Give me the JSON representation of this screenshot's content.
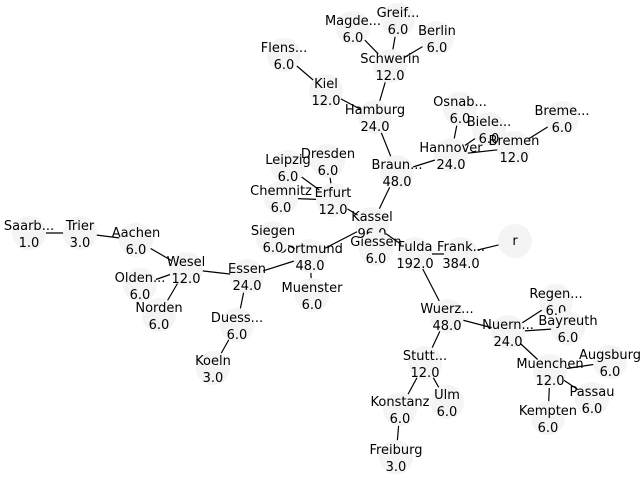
{
  "graph": {
    "nodes": [
      {
        "id": "r",
        "label": "r",
        "value": ""
      },
      {
        "id": "frankfurt",
        "label": "Frank...",
        "value": "384.0"
      },
      {
        "id": "fulda",
        "label": "Fulda",
        "value": "192.0"
      },
      {
        "id": "kassel",
        "label": "Kassel",
        "value": "96.0"
      },
      {
        "id": "giessen",
        "label": "Giessen",
        "value": "6.0"
      },
      {
        "id": "braunschweig",
        "label": "Braun...",
        "value": "48.0"
      },
      {
        "id": "hannover",
        "label": "Hannover",
        "value": "24.0"
      },
      {
        "id": "osnabrueck",
        "label": "Osnab...",
        "value": "6.0"
      },
      {
        "id": "bielefeld",
        "label": "Biele...",
        "value": "6.0"
      },
      {
        "id": "bremen",
        "label": "Bremen",
        "value": "12.0"
      },
      {
        "id": "bremerhaven",
        "label": "Breme...",
        "value": "6.0"
      },
      {
        "id": "hamburg",
        "label": "Hamburg",
        "value": "24.0"
      },
      {
        "id": "kiel",
        "label": "Kiel",
        "value": "12.0"
      },
      {
        "id": "flensburg",
        "label": "Flens...",
        "value": "6.0"
      },
      {
        "id": "schwerin",
        "label": "Schwerin",
        "value": "12.0"
      },
      {
        "id": "magdeburg",
        "label": "Magde...",
        "value": "6.0"
      },
      {
        "id": "greifswald",
        "label": "Greif...",
        "value": "6.0"
      },
      {
        "id": "berlin",
        "label": "Berlin",
        "value": "6.0"
      },
      {
        "id": "erfurt",
        "label": "Erfurt",
        "value": "12.0"
      },
      {
        "id": "leipzig",
        "label": "Leipzig",
        "value": "6.0"
      },
      {
        "id": "dresden",
        "label": "Dresden",
        "value": "6.0"
      },
      {
        "id": "chemnitz",
        "label": "Chemnitz",
        "value": "6.0"
      },
      {
        "id": "dortmund",
        "label": "Dortmund",
        "value": "48.0"
      },
      {
        "id": "siegen",
        "label": "Siegen",
        "value": "6.0"
      },
      {
        "id": "muenster",
        "label": "Muenster",
        "value": "6.0"
      },
      {
        "id": "essen",
        "label": "Essen",
        "value": "24.0"
      },
      {
        "id": "duesseldorf",
        "label": "Duess...",
        "value": "6.0"
      },
      {
        "id": "koeln",
        "label": "Koeln",
        "value": "3.0"
      },
      {
        "id": "wesel",
        "label": "Wesel",
        "value": "12.0"
      },
      {
        "id": "oldenburg",
        "label": "Olden...",
        "value": "6.0"
      },
      {
        "id": "norden",
        "label": "Norden",
        "value": "6.0"
      },
      {
        "id": "aachen",
        "label": "Aachen",
        "value": "6.0"
      },
      {
        "id": "trier",
        "label": "Trier",
        "value": "3.0"
      },
      {
        "id": "saarbruecken",
        "label": "Saarb...",
        "value": "1.0"
      },
      {
        "id": "wuerzburg",
        "label": "Wuerz...",
        "value": "48.0"
      },
      {
        "id": "stuttgart",
        "label": "Stutt...",
        "value": "12.0"
      },
      {
        "id": "konstanz",
        "label": "Konstanz",
        "value": "6.0"
      },
      {
        "id": "freiburg",
        "label": "Freiburg",
        "value": "3.0"
      },
      {
        "id": "ulm",
        "label": "Ulm",
        "value": "6.0"
      },
      {
        "id": "nuernberg",
        "label": "Nuern...",
        "value": "24.0"
      },
      {
        "id": "regensburg",
        "label": "Regen...",
        "value": "6.0"
      },
      {
        "id": "bayreuth",
        "label": "Bayreuth",
        "value": "6.0"
      },
      {
        "id": "muenchen",
        "label": "Muenchen",
        "value": "12.0"
      },
      {
        "id": "augsburg",
        "label": "Augsburg",
        "value": "6.0"
      },
      {
        "id": "passau",
        "label": "Passau",
        "value": "6.0"
      },
      {
        "id": "kempten",
        "label": "Kempten",
        "value": "6.0"
      }
    ],
    "edges": [
      {
        "source": "r",
        "target": "frankfurt"
      },
      {
        "source": "frankfurt",
        "target": "fulda"
      },
      {
        "source": "fulda",
        "target": "kassel"
      },
      {
        "source": "fulda",
        "target": "wuerzburg"
      },
      {
        "source": "kassel",
        "target": "braunschweig"
      },
      {
        "source": "kassel",
        "target": "giessen"
      },
      {
        "source": "kassel",
        "target": "erfurt"
      },
      {
        "source": "kassel",
        "target": "dortmund"
      },
      {
        "source": "braunschweig",
        "target": "hannover"
      },
      {
        "source": "braunschweig",
        "target": "hamburg"
      },
      {
        "source": "hannover",
        "target": "osnabrueck"
      },
      {
        "source": "hannover",
        "target": "bielefeld"
      },
      {
        "source": "hannover",
        "target": "bremen"
      },
      {
        "source": "bremen",
        "target": "bremerhaven"
      },
      {
        "source": "hamburg",
        "target": "kiel"
      },
      {
        "source": "hamburg",
        "target": "schwerin"
      },
      {
        "source": "kiel",
        "target": "flensburg"
      },
      {
        "source": "schwerin",
        "target": "magdeburg"
      },
      {
        "source": "schwerin",
        "target": "greifswald"
      },
      {
        "source": "schwerin",
        "target": "berlin"
      },
      {
        "source": "erfurt",
        "target": "leipzig"
      },
      {
        "source": "erfurt",
        "target": "dresden"
      },
      {
        "source": "erfurt",
        "target": "chemnitz"
      },
      {
        "source": "dortmund",
        "target": "siegen"
      },
      {
        "source": "dortmund",
        "target": "muenster"
      },
      {
        "source": "dortmund",
        "target": "essen"
      },
      {
        "source": "essen",
        "target": "duesseldorf"
      },
      {
        "source": "essen",
        "target": "wesel"
      },
      {
        "source": "duesseldorf",
        "target": "koeln"
      },
      {
        "source": "wesel",
        "target": "oldenburg"
      },
      {
        "source": "wesel",
        "target": "norden"
      },
      {
        "source": "wesel",
        "target": "aachen"
      },
      {
        "source": "aachen",
        "target": "trier"
      },
      {
        "source": "trier",
        "target": "saarbruecken"
      },
      {
        "source": "wuerzburg",
        "target": "stuttgart"
      },
      {
        "source": "wuerzburg",
        "target": "nuernberg"
      },
      {
        "source": "stuttgart",
        "target": "konstanz"
      },
      {
        "source": "stuttgart",
        "target": "ulm"
      },
      {
        "source": "konstanz",
        "target": "freiburg"
      },
      {
        "source": "nuernberg",
        "target": "regensburg"
      },
      {
        "source": "nuernberg",
        "target": "bayreuth"
      },
      {
        "source": "nuernberg",
        "target": "muenchen"
      },
      {
        "source": "muenchen",
        "target": "augsburg"
      },
      {
        "source": "muenchen",
        "target": "passau"
      },
      {
        "source": "muenchen",
        "target": "kempten"
      }
    ]
  }
}
